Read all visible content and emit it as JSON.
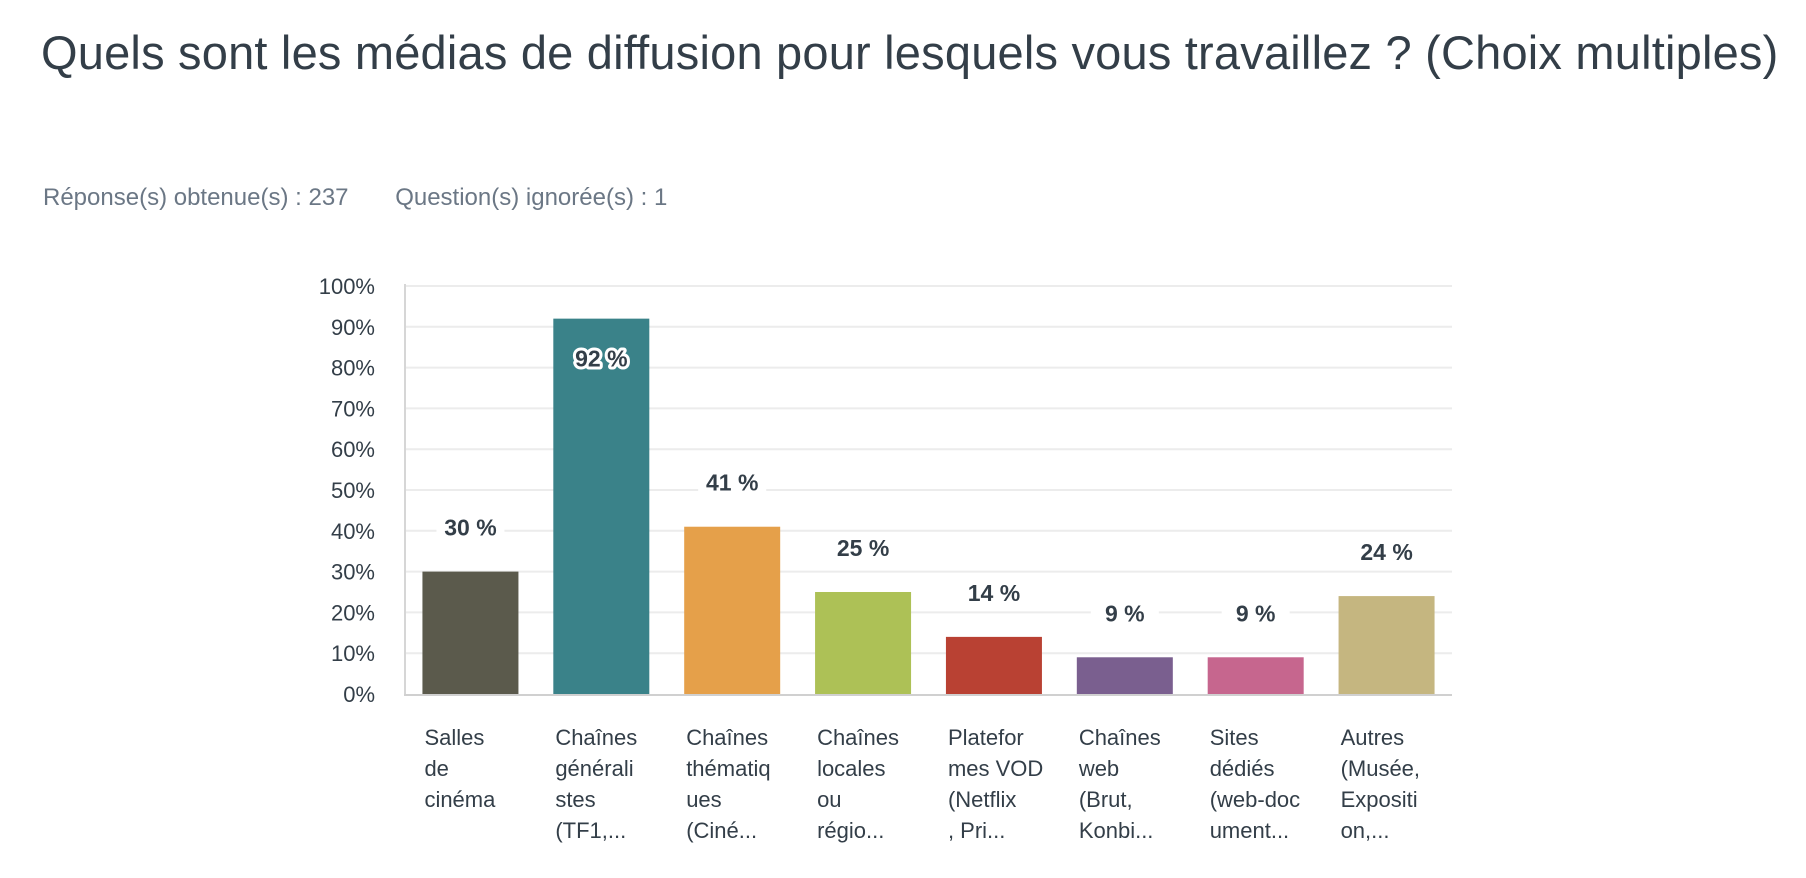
{
  "page": {
    "title": "Quels sont les médias de diffusion pour lesquels vous travaillez ? (Choix multiples)",
    "answered_label": "Réponse(s) obtenue(s) : 237",
    "skipped_label": "Question(s) ignorée(s) : 1"
  },
  "chart_data": {
    "type": "bar",
    "title": "Quels sont les médias de diffusion pour lesquels vous travaillez ? (Choix multiples)",
    "xlabel": "",
    "ylabel": "",
    "ylim": [
      0,
      100
    ],
    "yticks": [
      "0%",
      "10%",
      "20%",
      "30%",
      "40%",
      "50%",
      "60%",
      "70%",
      "80%",
      "90%",
      "100%"
    ],
    "grid": true,
    "categories": [
      [
        "Salles",
        "de",
        "cinéma"
      ],
      [
        "Chaînes",
        "générali",
        "stes",
        "(TF1,..."
      ],
      [
        "Chaînes",
        "thématiq",
        "ues",
        "(Ciné..."
      ],
      [
        "Chaînes",
        "locales",
        "ou",
        "régio..."
      ],
      [
        "Platefor",
        "mes VOD",
        "(Netflix",
        ", Pri..."
      ],
      [
        "Chaînes",
        "web",
        "(Brut,",
        "Konbi..."
      ],
      [
        "Sites",
        "dédiés",
        "(web-doc",
        "ument..."
      ],
      [
        "Autres",
        "(Musée,",
        "Expositi",
        "on,..."
      ]
    ],
    "values": [
      30,
      92,
      41,
      25,
      14,
      9,
      9,
      24
    ],
    "data_labels": [
      "30 %",
      "92 %",
      "41 %",
      "25 %",
      "14 %",
      "9 %",
      "9 %",
      "24 %"
    ],
    "colors": [
      "#5b5a4c",
      "#3a8289",
      "#e5a04a",
      "#adc156",
      "#b94133",
      "#7a5f8f",
      "#c6668e",
      "#c5b680"
    ]
  }
}
